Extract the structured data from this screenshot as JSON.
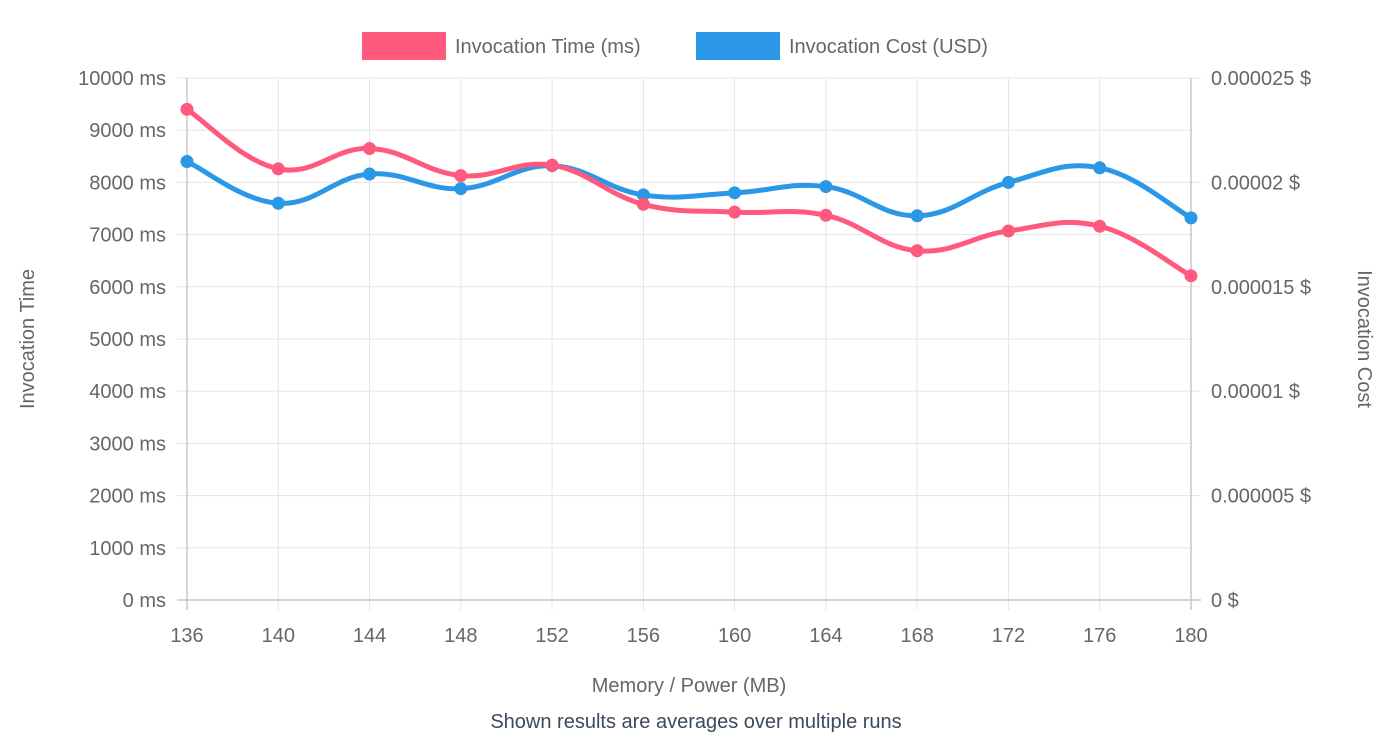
{
  "chart_data": {
    "type": "line",
    "x": [
      136,
      140,
      144,
      148,
      152,
      156,
      160,
      164,
      168,
      172,
      176,
      180
    ],
    "xlabel": "Memory / Power (MB)",
    "y_left_label": "Invocation Time",
    "y_right_label": "Invocation Cost",
    "y_left_lim": [
      0,
      10000
    ],
    "y_right_lim": [
      0,
      2.5e-05
    ],
    "y_left_ticks": [
      "0 ms",
      "1000 ms",
      "2000 ms",
      "3000 ms",
      "4000 ms",
      "5000 ms",
      "6000 ms",
      "7000 ms",
      "8000 ms",
      "9000 ms",
      "10000 ms"
    ],
    "y_right_ticks": [
      "0 $",
      "0.000005 $",
      "0.00001 $",
      "0.000015 $",
      "0.00002 $",
      "0.000025 $"
    ],
    "x_ticks": [
      "136",
      "140",
      "144",
      "148",
      "152",
      "156",
      "160",
      "164",
      "168",
      "172",
      "176",
      "180"
    ],
    "grid": true,
    "legend_position": "top",
    "series": [
      {
        "name": "Invocation Time (ms)",
        "axis": "left",
        "color": "#ff5a7e",
        "values": [
          9400,
          8260,
          8650,
          8130,
          8330,
          7580,
          7430,
          7370,
          6690,
          7070,
          7160,
          6210
        ]
      },
      {
        "name": "Invocation Cost (USD)",
        "axis": "right",
        "color": "#2a98e6",
        "values": [
          2.1e-05,
          1.9e-05,
          2.04e-05,
          1.97e-05,
          2.08e-05,
          1.94e-05,
          1.95e-05,
          1.98e-05,
          1.84e-05,
          2e-05,
          2.07e-05,
          1.83e-05
        ]
      }
    ],
    "footnote": "Shown results are averages over multiple runs"
  },
  "colors": {
    "grid": "#e5e5e5",
    "axis": "#c8c8c8",
    "text": "#666666",
    "footnote": "#3b4a5c"
  }
}
